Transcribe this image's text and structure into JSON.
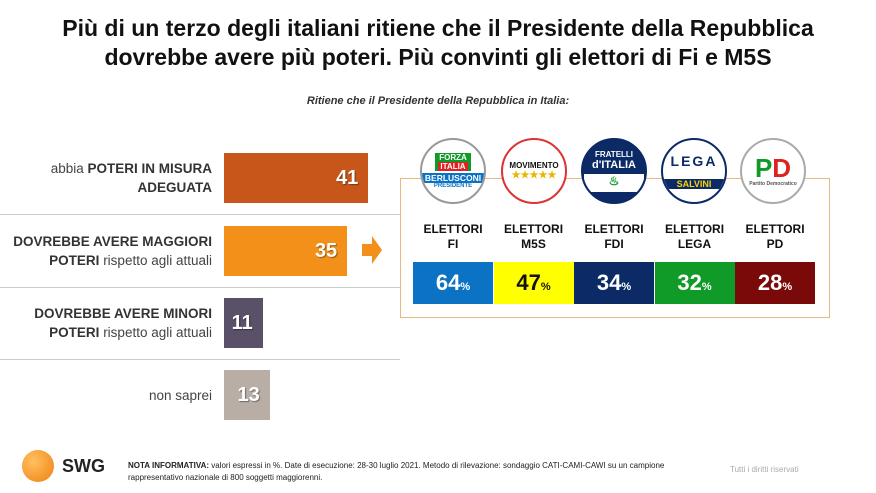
{
  "title": {
    "line1": "Più di un terzo degli italiani ritiene che il Presidente della Repubblica",
    "line2": "dovrebbe avere più poteri. Più convinti gli elettori di Fi e M5S"
  },
  "chart_data": {
    "type": "bar",
    "subtitle": "Ritiene che il Presidente della Repubblica in Italia:",
    "categories": [
      {
        "pre": "abbia ",
        "bold": "POTERI IN MISURA ADEGUATA",
        "post": ""
      },
      {
        "pre": "",
        "bold": "DOVREBBE AVERE MAGGIORI POTERI",
        "post": " rispetto agli attuali"
      },
      {
        "pre": "",
        "bold": "DOVREBBE AVERE MINORI POTERI",
        "post": " rispetto agli attuali"
      },
      {
        "pre": "non saprei",
        "bold": "",
        "post": ""
      }
    ],
    "values": [
      41,
      35,
      11,
      13
    ],
    "colors": [
      "#c8561a",
      "#f39019",
      "#5a5068",
      "#b8aea6"
    ],
    "breakdown": {
      "label_prefix": "ELETTORI",
      "parties": [
        {
          "name": "FI",
          "value": 64,
          "color": "#0b72c4",
          "text_color": "#ffffff"
        },
        {
          "name": "M5S",
          "value": 47,
          "color": "#ffff00",
          "text_color": "#111111"
        },
        {
          "name": "FDI",
          "value": 34,
          "color": "#0b2a66",
          "text_color": "#ffffff"
        },
        {
          "name": "LEGA",
          "value": 32,
          "color": "#109a28",
          "text_color": "#ffffff"
        },
        {
          "name": "PD",
          "value": 28,
          "color": "#7a0a0a",
          "text_color": "#ffffff"
        }
      ],
      "unit": "%"
    }
  },
  "logos": {
    "fi": "FORZA ITALIA BERLUSCONI PRESIDENTE",
    "m5s": "MOVIMENTO ★★★★★",
    "fdi": "FRATELLI d'ITALIA",
    "lega": "LEGA SALVINI PREMIER",
    "pd": "PD Partito Democratico"
  },
  "footer": {
    "brand": "SWG",
    "note_label": "NOTA INFORMATIVA:",
    "note": " valori espressi in %. Date di esecuzione: 28-30 luglio 2021. Metodo di rilevazione: sondaggio CATI-CAMI-CAWI su un campione rappresentativo nazionale di 800 soggetti maggiorenni.",
    "rights": "Tutti i diritti riservati"
  }
}
